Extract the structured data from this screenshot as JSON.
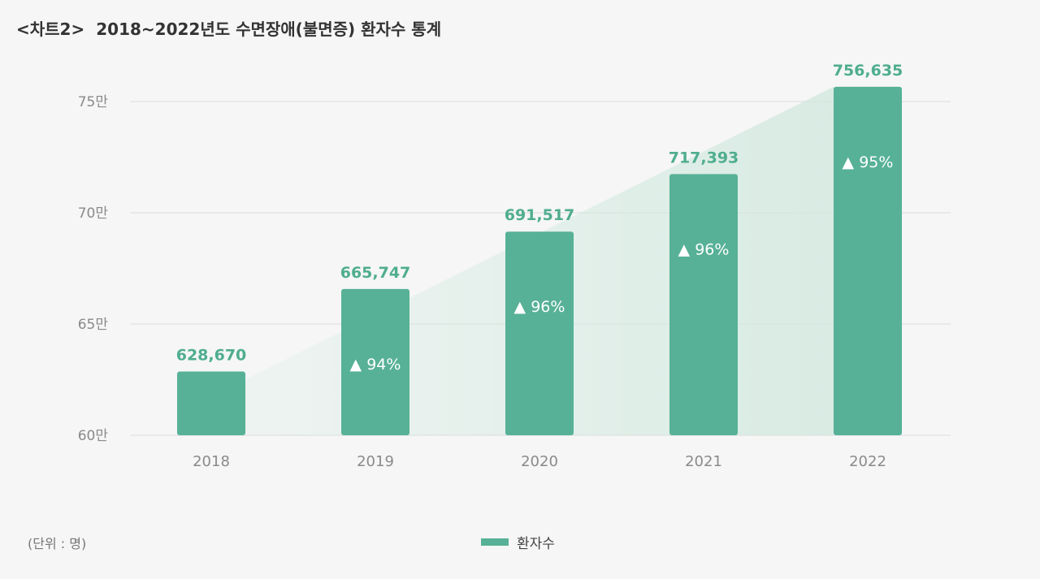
{
  "title": {
    "prefix": "<차트2>",
    "text": "2018~2022년도 수면장애(불면증) 환자수 통계"
  },
  "unit_note": "(단위 : 명)",
  "colors": {
    "bar": "#57b196",
    "value_label": "#4fad8f",
    "grid": "#dadcdb",
    "tick": "#8a8a8a",
    "growth_label": "#ffffff"
  },
  "chart_data": {
    "type": "bar",
    "categories": [
      "2018",
      "2019",
      "2020",
      "2021",
      "2022"
    ],
    "series": [
      {
        "name": "환자수",
        "values": [
          628670,
          665747,
          691517,
          717393,
          756635
        ],
        "value_labels": [
          "628,670",
          "665,747",
          "691,517",
          "717,393",
          "756,635"
        ],
        "growth_labels": [
          "",
          "▲ 94%",
          "▲ 96%",
          "▲ 96%",
          "▲ 95%"
        ]
      }
    ],
    "y_ticks": [
      {
        "value": 600000,
        "label": "60만"
      },
      {
        "value": 650000,
        "label": "65만"
      },
      {
        "value": 700000,
        "label": "70만"
      },
      {
        "value": 750000,
        "label": "75만"
      }
    ],
    "ylim": [
      600000,
      750000
    ],
    "grid": true,
    "legend": "bottom-center",
    "trend_area": true
  }
}
